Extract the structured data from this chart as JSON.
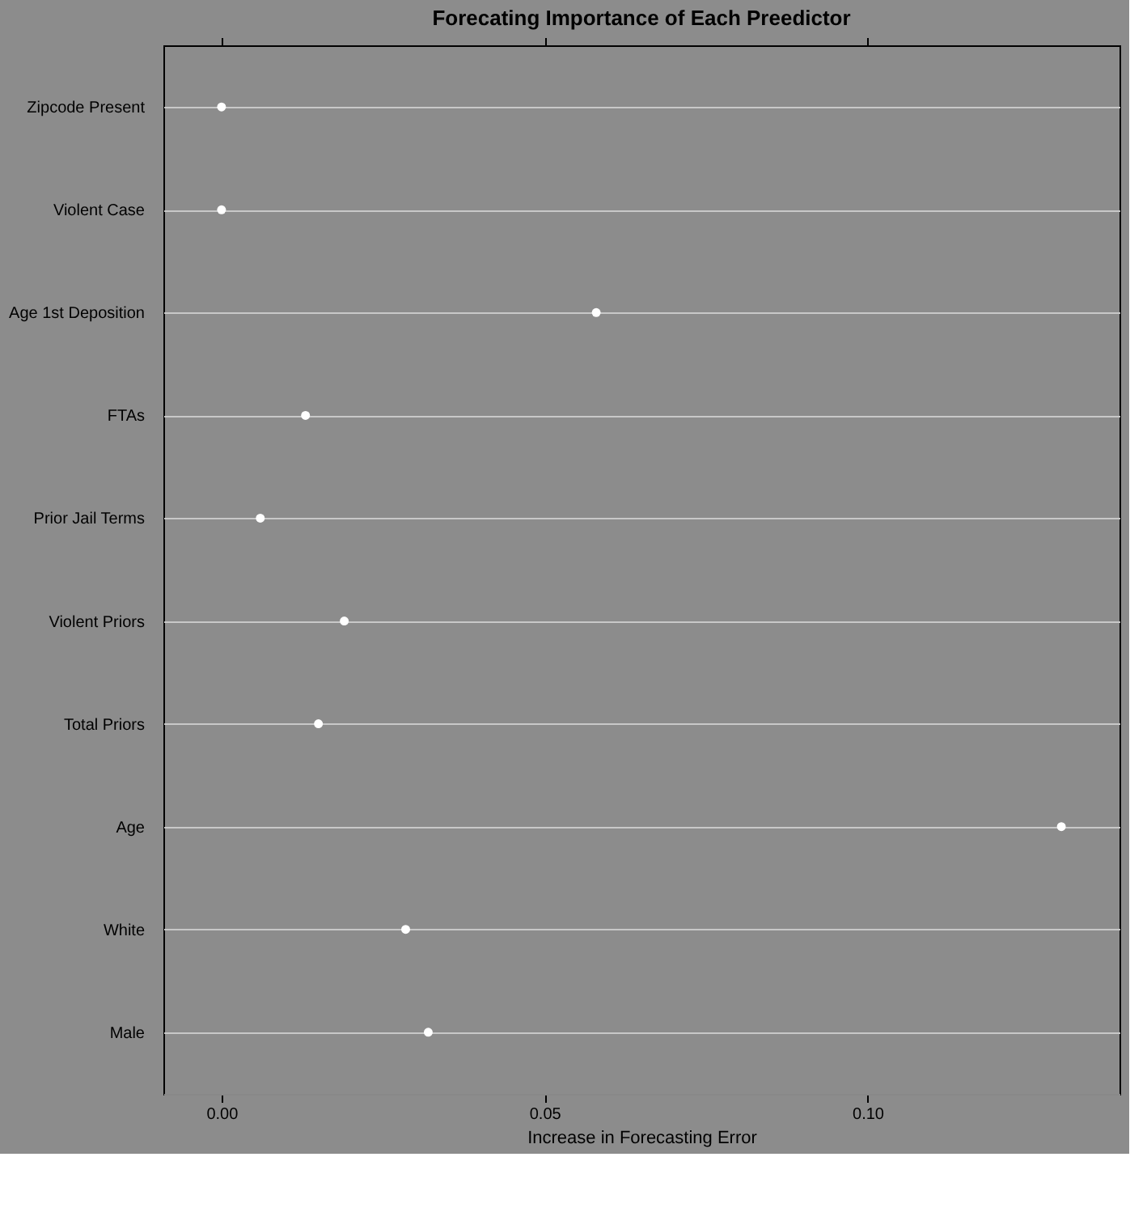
{
  "chart_data": {
    "type": "scatter",
    "title": "Forecating Importance of Each Preedictor",
    "xlabel": "Increase in Forecasting Error",
    "categories": [
      "Zipcode Present",
      "Violent Case",
      "Age 1st Deposition",
      "FTAs",
      "Prior Jail Terms",
      "Violent Priors",
      "Total Priors",
      "Age",
      "White",
      "Male"
    ],
    "values": [
      0.0,
      0.0,
      0.058,
      0.013,
      0.006,
      0.019,
      0.015,
      0.13,
      0.0285,
      0.032
    ],
    "orientation": "horizontal",
    "color": "#ffffff",
    "marker": "circle",
    "xlim": [
      -0.009,
      0.139
    ],
    "xticks": [
      {
        "value": 0,
        "label": "0.00"
      },
      {
        "value": 0.05,
        "label": "0.05"
      },
      {
        "value": 0.1,
        "label": "0.10"
      }
    ],
    "grid": "y"
  }
}
